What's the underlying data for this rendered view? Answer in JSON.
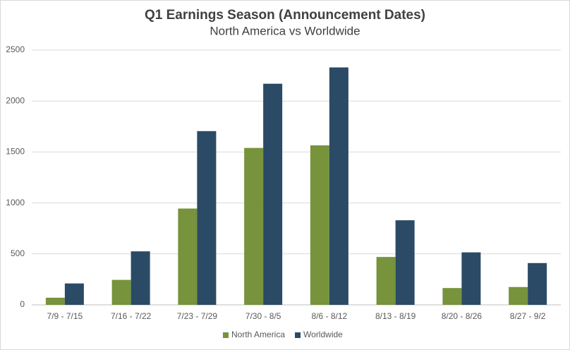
{
  "chart_data": {
    "type": "bar",
    "title": "Q1 Earnings Season (Announcement Dates)",
    "subtitle": "North America vs Worldwide",
    "categories": [
      "7/9 - 7/15",
      "7/16 - 7/22",
      "7/23 - 7/29",
      "7/30 - 8/5",
      "8/6 - 8/12",
      "8/13 - 8/19",
      "8/20 - 8/26",
      "8/27 - 9/2"
    ],
    "series": [
      {
        "name": "North America",
        "color": "#77933c",
        "values": [
          70,
          245,
          945,
          1540,
          1565,
          470,
          165,
          175
        ]
      },
      {
        "name": "Worldwide",
        "color": "#2b4a66",
        "values": [
          210,
          525,
          1705,
          2170,
          2330,
          830,
          515,
          410
        ]
      }
    ],
    "ylim": [
      0,
      2500
    ],
    "yticks": [
      0,
      500,
      1000,
      1500,
      2000,
      2500
    ],
    "grid": true,
    "legend": "bottom"
  }
}
